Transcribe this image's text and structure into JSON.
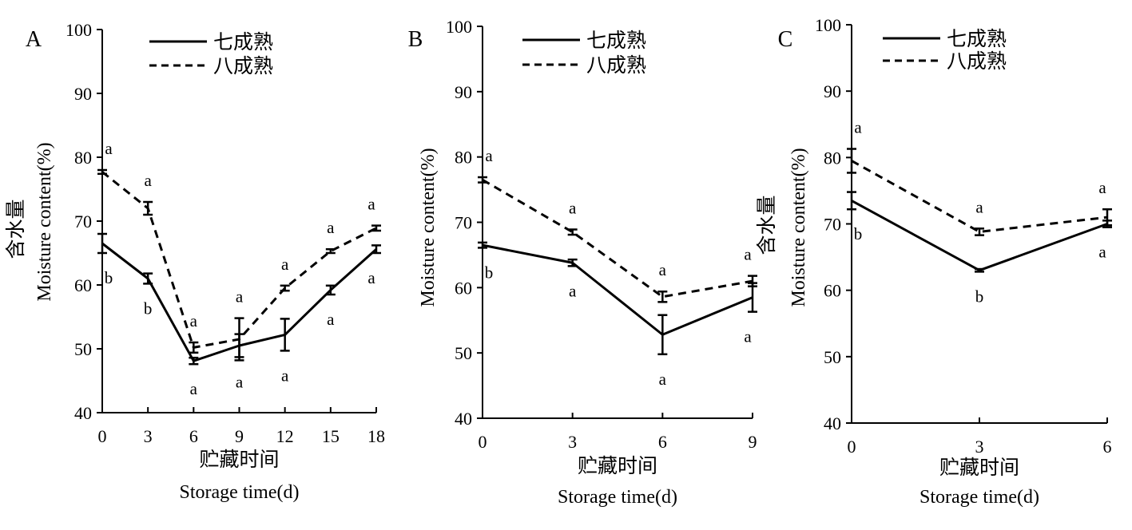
{
  "figure": {
    "legend": [
      "七成熟",
      "八成熟"
    ]
  },
  "chart_data": [
    {
      "type": "line",
      "panel_label": "A",
      "xlabel_cn": "贮藏时间",
      "xlabel": "Storage time(d)",
      "ylabel_cn": "含水量",
      "ylabel": "Moisture content(%)",
      "ylim": [
        40,
        100
      ],
      "yticks": [
        40,
        50,
        60,
        70,
        80,
        90,
        100
      ],
      "x": [
        0,
        3,
        6,
        9,
        12,
        15,
        18
      ],
      "xticks": [
        0,
        3,
        6,
        9,
        12,
        15,
        18
      ],
      "xlim": [
        0,
        18
      ],
      "grid": false,
      "legend_position": "top-center",
      "series": [
        {
          "name": "七成熟",
          "style": "solid",
          "values": [
            66.5,
            61,
            48.1,
            50.5,
            52.2,
            59.2,
            65.6
          ],
          "errors": [
            1.5,
            0.8,
            0.5,
            1.8,
            2.5,
            0.7,
            0.6
          ],
          "letters": [
            "b",
            "b",
            "a",
            "a",
            "a",
            "a",
            "a"
          ]
        },
        {
          "name": "八成熟",
          "style": "dashed",
          "values": [
            77.7,
            72,
            50.2,
            51.5,
            59.5,
            65.3,
            68.9
          ],
          "errors": [
            0.3,
            1.0,
            0.8,
            3.3,
            0.4,
            0.3,
            0.4
          ],
          "letters": [
            "a",
            "a",
            "a",
            "a",
            "a",
            "a",
            "a"
          ]
        }
      ]
    },
    {
      "type": "line",
      "panel_label": "B",
      "xlabel_cn": "贮藏时间",
      "xlabel": "Storage time(d)",
      "ylabel": "Moisture content(%)",
      "ylim": [
        40,
        100
      ],
      "yticks": [
        40,
        50,
        60,
        70,
        80,
        90,
        100
      ],
      "x": [
        0,
        3,
        6,
        9
      ],
      "xticks": [
        0,
        3,
        6,
        9
      ],
      "xlim": [
        0,
        9
      ],
      "grid": false,
      "legend_position": "top-center",
      "series": [
        {
          "name": "七成熟",
          "style": "solid",
          "values": [
            66.5,
            63.8,
            52.8,
            58.5
          ],
          "errors": [
            0.4,
            0.5,
            3.0,
            2.2
          ],
          "letters": [
            "b",
            "a",
            "a",
            "a"
          ]
        },
        {
          "name": "八成熟",
          "style": "dashed",
          "values": [
            76.5,
            68.5,
            58.6,
            61
          ],
          "errors": [
            0.4,
            0.4,
            0.8,
            0.8
          ],
          "letters": [
            "a",
            "a",
            "a",
            "a"
          ]
        }
      ]
    },
    {
      "type": "line",
      "panel_label": "C",
      "xlabel_cn": "贮藏时间",
      "xlabel": "Storage time(d)",
      "ylabel_cn": "含水量",
      "ylabel": "Moisture content(%)",
      "ylim": [
        40,
        100
      ],
      "yticks": [
        40,
        50,
        60,
        70,
        80,
        90,
        100
      ],
      "x": [
        0,
        3,
        6
      ],
      "xticks": [
        0,
        3,
        6
      ],
      "xlim": [
        0,
        6
      ],
      "grid": false,
      "legend_position": "top-center",
      "series": [
        {
          "name": "七成熟",
          "style": "solid",
          "values": [
            73.5,
            63,
            70
          ],
          "errors": [
            1.3,
            0.2,
            0.5
          ],
          "letters": [
            "b",
            "b",
            "a"
          ]
        },
        {
          "name": "八成熟",
          "style": "dashed",
          "values": [
            79.5,
            68.8,
            71
          ],
          "errors": [
            1.8,
            0.5,
            1.2
          ],
          "letters": [
            "a",
            "a",
            "a"
          ]
        }
      ]
    }
  ]
}
